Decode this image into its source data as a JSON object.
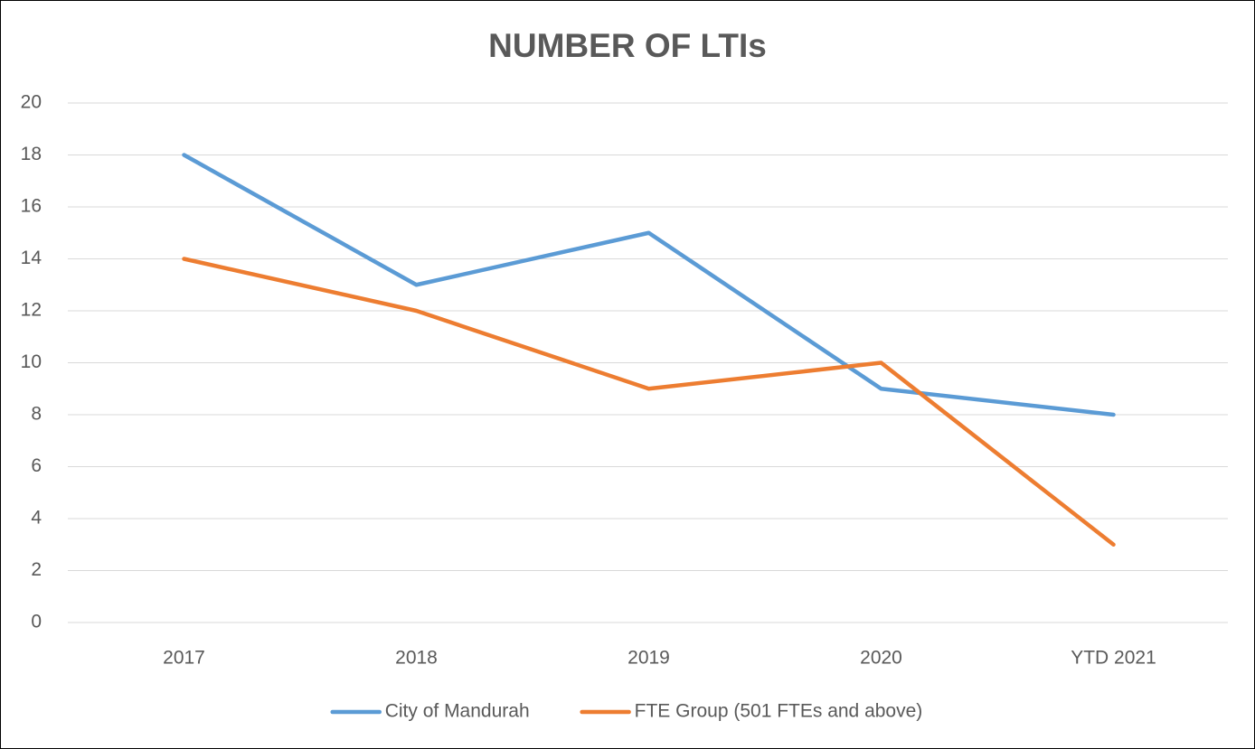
{
  "chart_data": {
    "type": "line",
    "title": "NUMBER OF LTIs",
    "categories": [
      "2017",
      "2018",
      "2019",
      "2020",
      "YTD 2021"
    ],
    "series": [
      {
        "name": "City of Mandurah",
        "color": "#5b9bd5",
        "values": [
          18,
          13,
          15,
          9,
          8
        ]
      },
      {
        "name": "FTE Group (501 FTEs and above)",
        "color": "#ed7d31",
        "values": [
          14,
          12,
          9,
          10,
          3
        ]
      }
    ],
    "ylim": [
      0,
      20
    ],
    "yticks": [
      0,
      2,
      4,
      6,
      8,
      10,
      12,
      14,
      16,
      18,
      20
    ],
    "grid": true,
    "legend": "bottom"
  }
}
